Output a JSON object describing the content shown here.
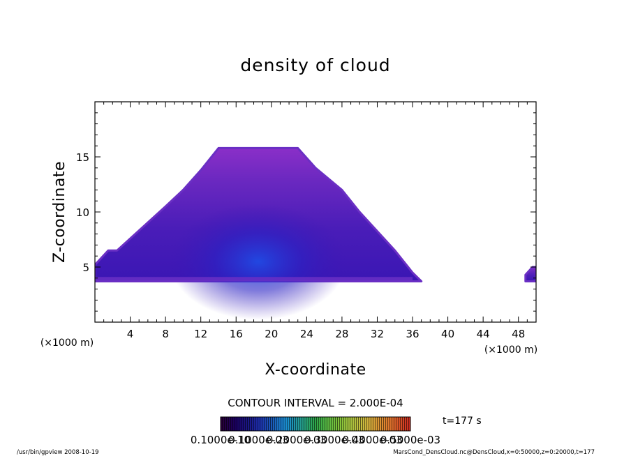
{
  "chart_data": {
    "type": "heatmap",
    "title": "density of cloud",
    "xlabel": "X-coordinate",
    "ylabel": "Z-coordinate",
    "x_unit": "(×1000 m)",
    "xlim": [
      0,
      50
    ],
    "ylim": [
      0,
      20
    ],
    "x_ticks": [
      4,
      8,
      12,
      16,
      20,
      24,
      28,
      32,
      36,
      40,
      44,
      48
    ],
    "y_ticks": [
      5,
      10,
      15
    ],
    "cloud_regions": [
      {
        "polygon": [
          [
            0,
            3.7
          ],
          [
            0,
            5.2
          ],
          [
            1.5,
            6.5
          ],
          [
            2.5,
            6.5
          ],
          [
            8,
            10.5
          ],
          [
            10,
            12
          ],
          [
            12,
            13.8
          ],
          [
            14,
            15.8
          ],
          [
            23,
            15.8
          ],
          [
            25,
            14
          ],
          [
            28,
            12
          ],
          [
            30,
            10
          ],
          [
            34,
            6.5
          ],
          [
            36,
            4.5
          ],
          [
            37,
            3.7
          ]
        ]
      },
      {
        "polygon": [
          [
            48.8,
            3.7
          ],
          [
            48.8,
            4.3
          ],
          [
            49.6,
            5
          ],
          [
            50,
            5
          ],
          [
            50,
            3.7
          ]
        ]
      }
    ],
    "contour_interval": "CONTOUR INTERVAL = 2.000E-04",
    "colorbar_labels": [
      "0.1000e-10",
      "0.1000e-03",
      "0.2000e-03",
      "0.3000e-03",
      "0.4000e-03",
      "0.5000e-03"
    ],
    "time_label": "t=177 s"
  },
  "footer": {
    "left": "/usr/bin/gpview   2008-10-19",
    "right": "MarsCond_DensCloud.nc@DensCloud,x=0:50000,z=0:20000,t=177"
  },
  "colors": {
    "cloud_edge": "#6a2fc4",
    "cloud_body": "#4b1fb8",
    "cloud_core": "#2f10b0",
    "cloud_peak": "#1b3be0"
  }
}
